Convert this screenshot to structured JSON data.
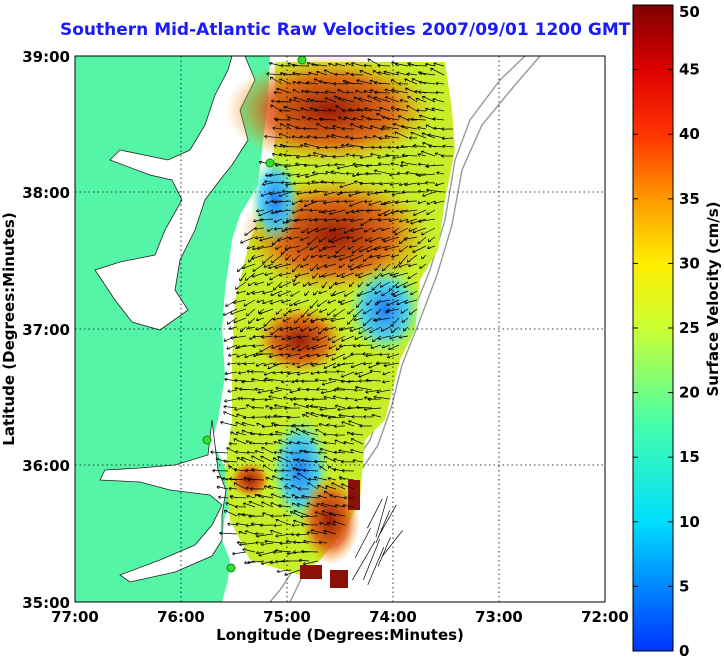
{
  "title": "Southern Mid-Atlantic Raw Velocities 2007/09/01 1200 GMT",
  "xlabel": "Longitude (Degrees:Minutes)",
  "ylabel": "Latitude (Degrees:Minutes)",
  "colorbar_label": "Surface Velocity (cm/s)",
  "x_ticks": [
    "77:00",
    "76:00",
    "75:00",
    "74:00",
    "73:00",
    "72:00"
  ],
  "y_ticks": [
    "39:00",
    "38:00",
    "37:00",
    "36:00",
    "35:00"
  ],
  "colorbar_ticks": [
    "0",
    "5",
    "10",
    "15",
    "20",
    "25",
    "30",
    "35",
    "40",
    "45",
    "50"
  ],
  "colors": {
    "land": "#55f5a8",
    "title": "#1a1aff",
    "station": "#33dd33"
  }
}
